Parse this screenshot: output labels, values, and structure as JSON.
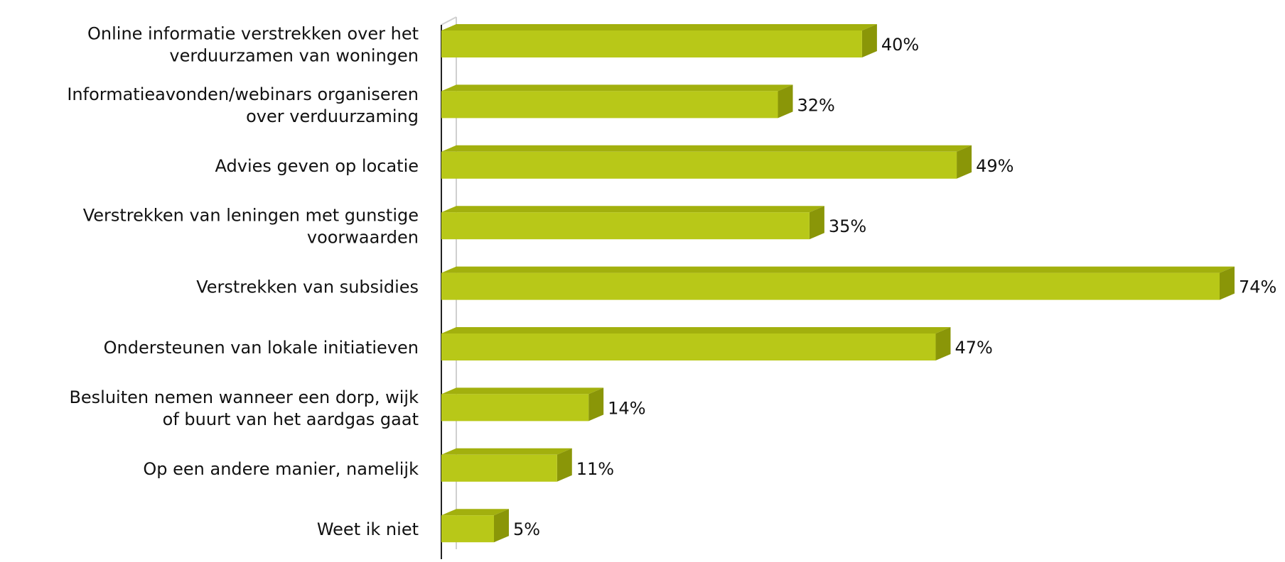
{
  "chart_data": {
    "type": "bar",
    "orientation": "horizontal",
    "style": "3d",
    "title": "",
    "xlabel": "",
    "ylabel": "",
    "value_unit": "%",
    "xlim": [
      0,
      74
    ],
    "grid": false,
    "legend": "none",
    "bar_color": "#b8c818",
    "bar_top_color": "#a2b00e",
    "bar_side_color": "#8a9608",
    "categories": [
      [
        "Online informatie verstrekken over het",
        "verduurzamen van woningen"
      ],
      [
        "Informatieavonden/webinars organiseren",
        "over verduurzaming"
      ],
      [
        "Advies geven op locatie"
      ],
      [
        "Verstrekken van leningen met gunstige",
        "voorwaarden"
      ],
      [
        "Verstrekken van subsidies"
      ],
      [
        "Ondersteunen van lokale initiatieven"
      ],
      [
        "Besluiten nemen wanneer een dorp, wijk",
        "of buurt van het aardgas gaat"
      ],
      [
        "Op een andere manier, namelijk"
      ],
      [
        "Weet ik niet"
      ]
    ],
    "values": [
      40,
      32,
      49,
      35,
      74,
      47,
      14,
      11,
      5
    ],
    "data_labels": [
      "40%",
      "32%",
      "49%",
      "35%",
      "74%",
      "47%",
      "14%",
      "11%",
      "5%"
    ]
  }
}
